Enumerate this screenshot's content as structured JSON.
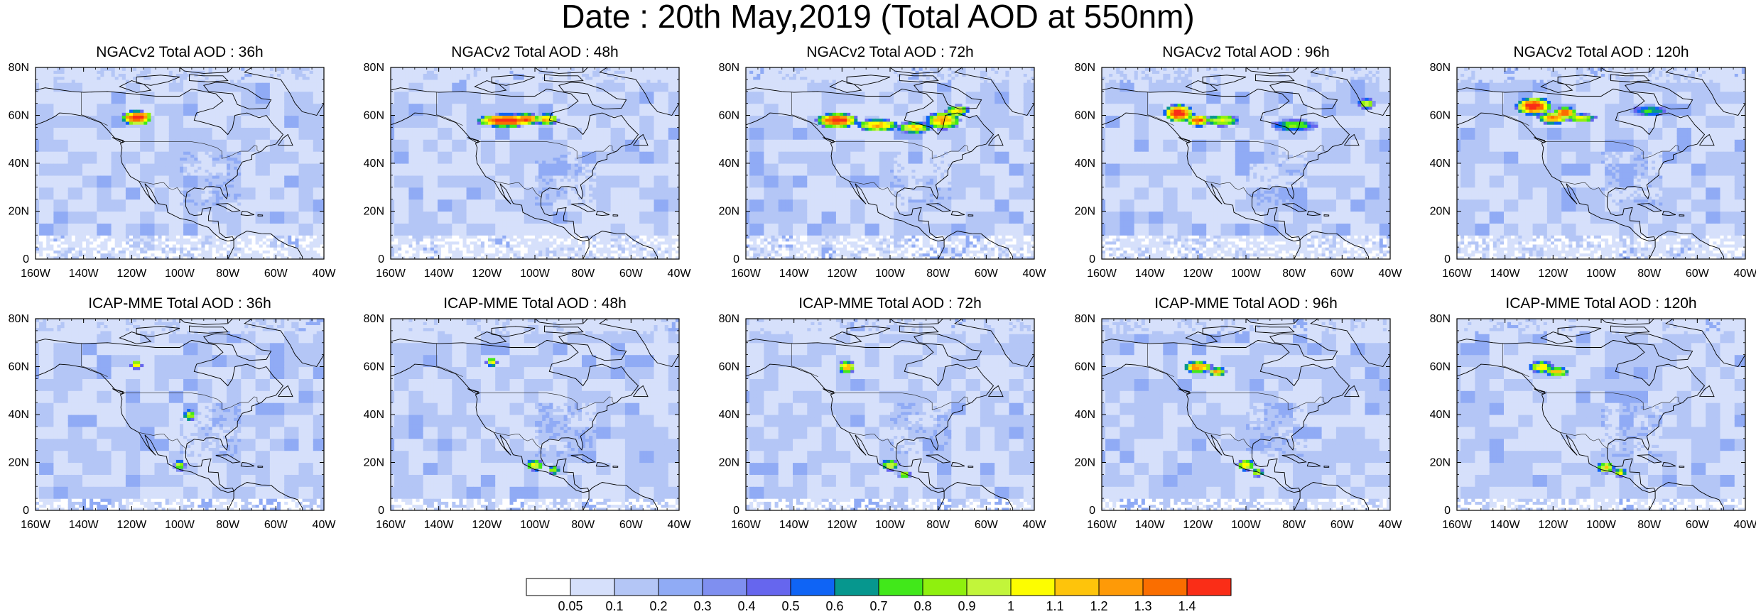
{
  "title": "Date : 20th May,2019 (Total AOD at 550nm)",
  "panels": [
    {
      "title": "NGACv2 Total AOD : 36h"
    },
    {
      "title": "NGACv2 Total AOD : 48h"
    },
    {
      "title": "NGACv2 Total AOD : 72h"
    },
    {
      "title": "NGACv2 Total AOD : 96h"
    },
    {
      "title": "NGACv2 Total AOD : 120h"
    },
    {
      "title": "ICAP-MME Total AOD : 36h"
    },
    {
      "title": "ICAP-MME Total AOD : 48h"
    },
    {
      "title": "ICAP-MME Total AOD : 72h"
    },
    {
      "title": "ICAP-MME Total AOD : 96h"
    },
    {
      "title": "ICAP-MME Total AOD : 120h"
    }
  ],
  "lat_ticks": [
    "80N",
    "60N",
    "40N",
    "20N",
    "0"
  ],
  "lon_ticks": [
    "160W",
    "140W",
    "120W",
    "100W",
    "80W",
    "60W",
    "40W"
  ],
  "colorbar": {
    "labels": [
      "0.05",
      "0.1",
      "0.2",
      "0.3",
      "0.4",
      "0.5",
      "0.6",
      "0.7",
      "0.8",
      "0.9",
      "1",
      "1.1",
      "1.2",
      "1.3",
      "1.4"
    ],
    "colors": [
      "#ffffff",
      "#d6e0fb",
      "#b4c6f6",
      "#90abf5",
      "#7f8ff0",
      "#6666ee",
      "#0f64f5",
      "#06978e",
      "#41e81a",
      "#8ff00e",
      "#c2f53a",
      "#fdfd00",
      "#fec40b",
      "#fe9a07",
      "#fa6e00",
      "#fa2d17"
    ]
  }
}
